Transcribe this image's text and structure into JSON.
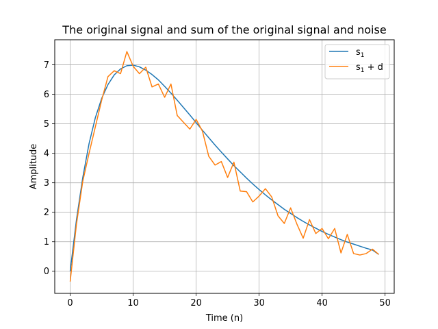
{
  "chart_data": {
    "type": "line",
    "title": "The original signal and sum of the original signal and noise",
    "xlabel": "Time (n)",
    "ylabel": "Amplitude",
    "xlim": [
      -2.45,
      51.45
    ],
    "ylim": [
      -0.75,
      7.85
    ],
    "xticks": [
      0,
      10,
      20,
      30,
      40,
      50
    ],
    "yticks": [
      0,
      1,
      2,
      3,
      4,
      5,
      6,
      7
    ],
    "grid": true,
    "legend_position": "upper right",
    "x": [
      0,
      1,
      2,
      3,
      4,
      5,
      6,
      7,
      8,
      9,
      10,
      11,
      12,
      13,
      14,
      15,
      16,
      17,
      18,
      19,
      20,
      21,
      22,
      23,
      24,
      25,
      26,
      27,
      28,
      29,
      30,
      31,
      32,
      33,
      34,
      35,
      36,
      37,
      38,
      39,
      40,
      41,
      42,
      43,
      44,
      45,
      46,
      47,
      48,
      49
    ],
    "series": [
      {
        "name": "s1",
        "name_main": "s",
        "name_sub": "1",
        "color": "#1f77b4",
        "values": [
          0.0,
          1.75,
          3.18,
          4.33,
          5.21,
          5.86,
          6.33,
          6.66,
          6.86,
          6.97,
          6.99,
          6.93,
          6.82,
          6.67,
          6.49,
          6.27,
          6.04,
          5.8,
          5.55,
          5.3,
          5.04,
          4.78,
          4.53,
          4.28,
          4.04,
          3.81,
          3.58,
          3.37,
          3.16,
          2.96,
          2.77,
          2.59,
          2.42,
          2.26,
          2.1,
          1.96,
          1.82,
          1.69,
          1.57,
          1.46,
          1.35,
          1.25,
          1.16,
          1.07,
          0.99,
          0.92,
          0.85,
          0.78,
          0.72,
          0.57
        ]
      },
      {
        "name": "s1 + d",
        "name_main": "s",
        "name_sub": "1",
        "name_suffix": " + d",
        "color": "#ff7f0e",
        "values": [
          -0.35,
          1.6,
          3.05,
          4.0,
          4.9,
          5.8,
          6.6,
          6.8,
          6.7,
          7.45,
          6.95,
          6.7,
          6.92,
          6.25,
          6.35,
          5.9,
          6.35,
          5.28,
          5.05,
          4.82,
          5.15,
          4.75,
          3.9,
          3.6,
          3.72,
          3.18,
          3.7,
          2.72,
          2.7,
          2.35,
          2.55,
          2.8,
          2.52,
          1.88,
          1.62,
          2.15,
          1.6,
          1.12,
          1.75,
          1.28,
          1.45,
          1.1,
          1.45,
          0.62,
          1.25,
          0.6,
          0.55,
          0.6,
          0.75,
          0.57
        ]
      }
    ]
  }
}
